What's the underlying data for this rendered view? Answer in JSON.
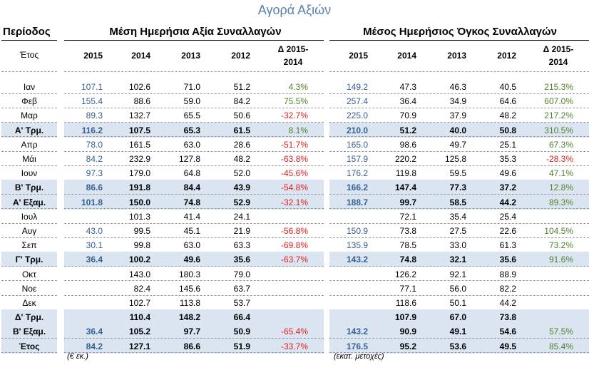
{
  "title": "Αγορά Αξιών",
  "headers": {
    "period": "Περίοδος",
    "value_group": "Μέση Ημερήσια Αξία Συναλλαγών",
    "volume_group": "Μέσος Ημερήσιος Όγκος Συναλλαγών",
    "year_label": "Έτος",
    "years": [
      "2015",
      "2014",
      "2013",
      "2012"
    ],
    "delta_line1": "Δ 2015-",
    "delta_line2": "2014"
  },
  "rows": [
    {
      "label": "Ιαν",
      "summary": false,
      "v": [
        "107.1",
        "102.6",
        "71.0",
        "51.2",
        "4.3%"
      ],
      "o": [
        "149.2",
        "47.3",
        "46.3",
        "40.5",
        "215.3%"
      ]
    },
    {
      "label": "Φεβ",
      "summary": false,
      "v": [
        "155.4",
        "88.6",
        "59.0",
        "84.2",
        "75.5%"
      ],
      "o": [
        "257.4",
        "36.4",
        "34.9",
        "64.6",
        "607.0%"
      ]
    },
    {
      "label": "Μαρ",
      "summary": false,
      "v": [
        "89.3",
        "132.7",
        "65.5",
        "50.6",
        "-32.7%"
      ],
      "o": [
        "225.0",
        "70.9",
        "37.9",
        "48.2",
        "217.2%"
      ]
    },
    {
      "label": "Α' Τρμ.",
      "summary": true,
      "v": [
        "116.2",
        "107.5",
        "65.3",
        "61.5",
        "8.1%"
      ],
      "o": [
        "210.0",
        "51.2",
        "40.0",
        "50.8",
        "310.5%"
      ]
    },
    {
      "label": "Απρ",
      "summary": false,
      "v": [
        "78.0",
        "161.5",
        "63.0",
        "28.6",
        "-51.7%"
      ],
      "o": [
        "165.0",
        "98.6",
        "49.7",
        "25.1",
        "67.3%"
      ]
    },
    {
      "label": "Μάι",
      "summary": false,
      "v": [
        "84.2",
        "232.9",
        "127.8",
        "48.2",
        "-63.8%"
      ],
      "o": [
        "157.9",
        "220.2",
        "125.8",
        "35.3",
        "-28.3%"
      ]
    },
    {
      "label": "Ιουν",
      "summary": false,
      "v": [
        "97.3",
        "179.0",
        "64.8",
        "52.0",
        "-45.6%"
      ],
      "o": [
        "176.2",
        "119.8",
        "59.5",
        "49.6",
        "47.1%"
      ]
    },
    {
      "label": "Β' Τρμ.",
      "summary": true,
      "v": [
        "86.6",
        "191.8",
        "84.4",
        "43.9",
        "-54.8%"
      ],
      "o": [
        "166.2",
        "147.4",
        "77.3",
        "37.2",
        "12.8%"
      ]
    },
    {
      "label": "Α' Εξαμ.",
      "summary": true,
      "v": [
        "101.8",
        "150.0",
        "74.8",
        "52.9",
        "-32.1%"
      ],
      "o": [
        "188.7",
        "99.7",
        "58.5",
        "44.2",
        "89.3%"
      ]
    },
    {
      "label": "Ιουλ",
      "summary": false,
      "v": [
        "",
        "101.3",
        "41.4",
        "24.1",
        ""
      ],
      "o": [
        "",
        "72.1",
        "35.4",
        "25.4",
        ""
      ]
    },
    {
      "label": "Αυγ",
      "summary": false,
      "v": [
        "43.0",
        "99.5",
        "45.1",
        "21.9",
        "-56.8%"
      ],
      "o": [
        "150.9",
        "73.8",
        "27.5",
        "22.6",
        "104.5%"
      ]
    },
    {
      "label": "Σεπ",
      "summary": false,
      "v": [
        "30.1",
        "99.8",
        "63.0",
        "63.3",
        "-69.8%"
      ],
      "o": [
        "135.9",
        "78.5",
        "33.0",
        "61.3",
        "73.2%"
      ]
    },
    {
      "label": "Γ' Τρμ.",
      "summary": true,
      "v": [
        "36.4",
        "100.2",
        "49.6",
        "35.6",
        "-63.7%"
      ],
      "o": [
        "143.2",
        "74.8",
        "32.1",
        "35.6",
        "91.6%"
      ]
    },
    {
      "label": "Οκτ",
      "summary": false,
      "v": [
        "",
        "143.0",
        "180.3",
        "79.0",
        ""
      ],
      "o": [
        "",
        "126.2",
        "92.1",
        "88.9",
        ""
      ]
    },
    {
      "label": "Νοε",
      "summary": false,
      "v": [
        "",
        "82.4",
        "145.6",
        "63.7",
        ""
      ],
      "o": [
        "",
        "77.1",
        "56.0",
        "82.2",
        ""
      ]
    },
    {
      "label": "Δεκ",
      "summary": false,
      "v": [
        "",
        "102.7",
        "113.8",
        "53.7",
        ""
      ],
      "o": [
        "",
        "118.6",
        "50.1",
        "44.2",
        ""
      ]
    },
    {
      "label": "Δ' Τρμ.",
      "summary": true,
      "v": [
        "",
        "110.4",
        "148.2",
        "66.4",
        ""
      ],
      "o": [
        "",
        "107.9",
        "67.0",
        "73.8",
        ""
      ]
    },
    {
      "label": "Β' Εξαμ.",
      "summary": true,
      "v": [
        "36.4",
        "105.2",
        "97.7",
        "50.9",
        "-65.4%"
      ],
      "o": [
        "143.2",
        "90.9",
        "49.1",
        "54.6",
        "57.5%"
      ]
    },
    {
      "label": "Έτος",
      "summary": true,
      "v": [
        "84.2",
        "127.1",
        "86.6",
        "51.9",
        "-33.7%"
      ],
      "o": [
        "176.5",
        "95.2",
        "53.6",
        "49.5",
        "85.4%"
      ]
    }
  ],
  "notes": {
    "value_unit": "(€ εκ.)",
    "volume_unit": "(εκατ. μετοχές)"
  },
  "colors": {
    "title": "#5a7fb0",
    "year_2015": "#366092",
    "positive": "#4f7f2a",
    "negative": "#e02020",
    "band": "#dbe5f1"
  }
}
